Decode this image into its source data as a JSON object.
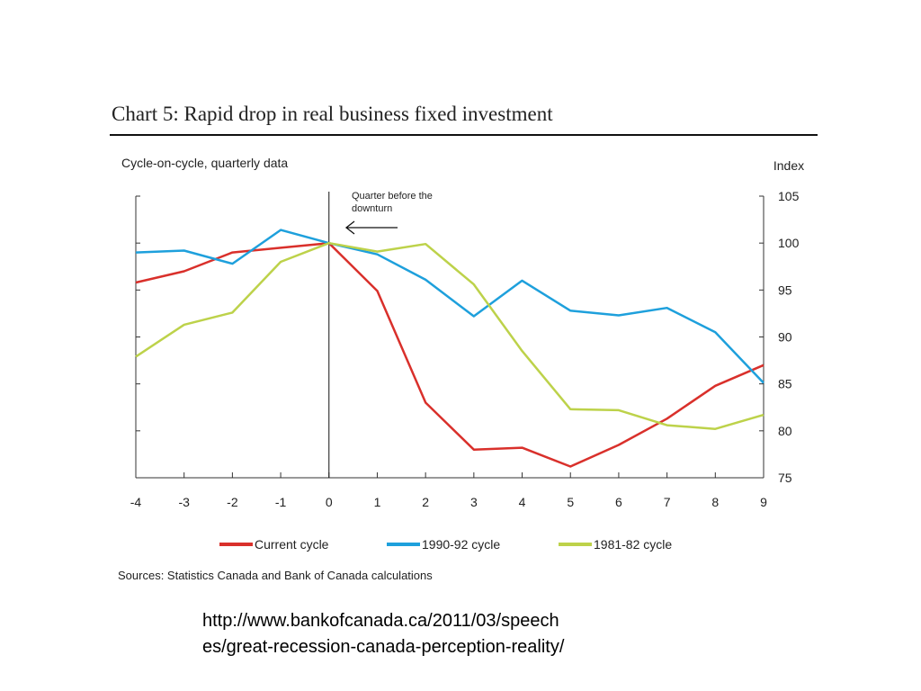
{
  "page": {
    "chart_title": "Chart 5: Rapid drop in real business fixed investment",
    "subtitle": "Cycle-on-cycle, quarterly data",
    "sources": "Sources: Statistics Canada and Bank of Canada calculations",
    "url_line1": "http://www.bankofcanada.ca/2011/03/speech",
    "url_line2": "es/great-recession-canada-perception-reality/"
  },
  "chart_data": {
    "type": "line",
    "title": "Chart 5: Rapid drop in real business fixed investment",
    "subtitle": "Cycle-on-cycle, quarterly data",
    "xlabel": "",
    "ylabel": "Index",
    "x": [
      -4,
      -3,
      -2,
      -1,
      0,
      1,
      2,
      3,
      4,
      5,
      6,
      7,
      8,
      9
    ],
    "xlim": [
      -4,
      9
    ],
    "ylim": [
      75,
      105
    ],
    "yticks": [
      75,
      80,
      85,
      90,
      95,
      100,
      105
    ],
    "y_axis_side": "right",
    "grid": false,
    "legend_position": "bottom",
    "annotation": {
      "text_line1": "Quarter before the",
      "text_line2": "downturn",
      "x": 0,
      "arrow_y": 101.7
    },
    "series": [
      {
        "name": "Current cycle",
        "color": "#d9302b",
        "values": [
          95.8,
          97.0,
          99.0,
          99.5,
          100.0,
          94.9,
          83.0,
          78.0,
          78.2,
          76.2,
          78.5,
          81.3,
          84.8,
          87.0
        ]
      },
      {
        "name": "1990-92 cycle",
        "color": "#1ea0dc",
        "values": [
          99.0,
          99.2,
          97.8,
          101.4,
          100.0,
          98.8,
          96.1,
          92.2,
          96.0,
          92.8,
          92.3,
          93.1,
          90.5,
          85.1
        ]
      },
      {
        "name": "1981-82 cycle",
        "color": "#bdd24a",
        "values": [
          87.9,
          91.3,
          92.6,
          98.0,
          100.0,
          99.1,
          99.9,
          95.6,
          88.5,
          82.3,
          82.2,
          80.6,
          80.2,
          81.7
        ]
      }
    ]
  }
}
